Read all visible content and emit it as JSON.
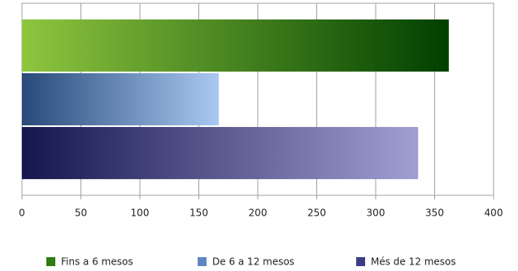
{
  "chart_data": {
    "type": "bar",
    "orientation": "horizontal",
    "categories": [
      null
    ],
    "series": [
      {
        "name": "Fins a 6 mesos",
        "color": "#2e7d12",
        "values": [
          362
        ]
      },
      {
        "name": "De 6 a 12 mesos",
        "color": "#5f86c0",
        "values": [
          167
        ]
      },
      {
        "name": "Més de 12 mesos",
        "color": "#3c3c86",
        "values": [
          336
        ]
      }
    ],
    "xlim": [
      0,
      400
    ],
    "xticks": [
      0,
      50,
      100,
      150,
      200,
      250,
      300,
      350,
      400
    ],
    "grid": true,
    "legend": "bottom"
  }
}
